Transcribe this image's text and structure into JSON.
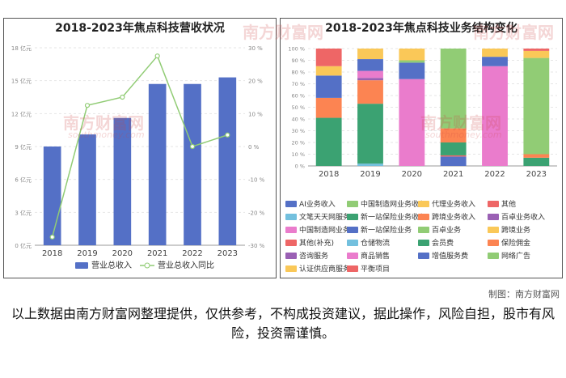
{
  "credit": "制图：南方财富网",
  "disclaimer": "以上数据由南方财富网整理提供，仅供参考，不构成投资建议，据此操作，风险自担，股市有风险，投资需谨慎。",
  "watermark": {
    "cn": "南方财富网",
    "en": "southmoney.com"
  },
  "colors": {
    "revenue_bar": "#5470c6",
    "yoy_line": "#91cc75",
    "panel_border": "#555555"
  },
  "chart_data": [
    {
      "type": "bar",
      "title": "2018-2023年焦点科技营收状况",
      "categories": [
        "2018",
        "2019",
        "2020",
        "2021",
        "2022",
        "2023"
      ],
      "y_ticks": [
        "0 亿元",
        "3 亿元",
        "6 亿元",
        "9 亿元",
        "12 亿元",
        "15 亿元",
        "18 亿元"
      ],
      "y2_ticks": [
        "-30 %",
        "-20 %",
        "-10 %",
        "0 %",
        "10 %",
        "20 %",
        "30 %"
      ],
      "ylim": [
        0,
        18
      ],
      "y2lim": [
        -30,
        30
      ],
      "series": [
        {
          "name": "营业总收入",
          "type": "bar",
          "axis": "left",
          "values": [
            9.0,
            10.1,
            11.6,
            14.7,
            14.7,
            15.3
          ]
        },
        {
          "name": "营业总收入同比",
          "type": "line",
          "axis": "right",
          "values": [
            -27.5,
            12.5,
            15.0,
            27.5,
            0.0,
            3.5
          ]
        }
      ],
      "legend_position": "bottom"
    },
    {
      "type": "bar",
      "stacked": true,
      "title": "2018-2023年焦点科技业务结构变化",
      "categories": [
        "2018",
        "2019",
        "2020",
        "2021",
        "2022",
        "2023"
      ],
      "y_ticks": [
        "0 %",
        "10 %",
        "20 %",
        "30 %",
        "40 %",
        "50 %",
        "60 %",
        "70 %",
        "80 %",
        "90 %",
        "100 %"
      ],
      "ylim": [
        0,
        100
      ],
      "series": [
        {
          "name": "AI业务收入",
          "color": "#5470c6",
          "values": [
            0,
            0,
            0,
            0,
            0,
            0
          ]
        },
        {
          "name": "中国制造网业务收入",
          "color": "#91cc75",
          "values": [
            0,
            0,
            0,
            0,
            0,
            0
          ]
        },
        {
          "name": "代理业务收入",
          "color": "#fac858",
          "values": [
            0,
            0,
            0,
            0,
            0,
            0
          ]
        },
        {
          "name": "其他",
          "color": "#ee6666",
          "values": [
            0,
            0,
            0,
            0,
            0,
            0
          ]
        },
        {
          "name": "文笔天天网服务",
          "color": "#73c0de",
          "values": [
            0,
            2,
            0,
            0,
            0,
            0
          ]
        },
        {
          "name": "新一站保险业务收入",
          "color": "#3ba272",
          "values": [
            41,
            51,
            0,
            0,
            0,
            0
          ]
        },
        {
          "name": "跨境业务收入",
          "color": "#fc8452",
          "values": [
            17,
            20,
            0,
            0,
            0,
            0
          ]
        },
        {
          "name": "百卓业务收入",
          "color": "#9a60b4",
          "values": [
            0,
            2,
            0,
            0,
            0,
            0
          ]
        },
        {
          "name": "中国制造网业务",
          "color": "#ea7ccc",
          "values": [
            0,
            6,
            74,
            0,
            0,
            0
          ]
        },
        {
          "name": "新一站保险业务",
          "color": "#5470c6",
          "values": [
            19,
            10,
            14,
            8,
            0,
            0
          ]
        },
        {
          "name": "百卓业务",
          "color": "#91cc75",
          "values": [
            0,
            0,
            2,
            0,
            0,
            0
          ]
        },
        {
          "name": "跨境业务",
          "color": "#fac858",
          "values": [
            8,
            0,
            10,
            0,
            0,
            0
          ]
        },
        {
          "name": "其他(补充)",
          "color": "#ee6666",
          "values": [
            15,
            0,
            0,
            1,
            0,
            0
          ]
        },
        {
          "name": "仓储物流",
          "color": "#73c0de",
          "values": [
            0,
            0,
            0,
            0,
            0,
            0
          ]
        },
        {
          "name": "会员费",
          "color": "#3ba272",
          "values": [
            0,
            0,
            0,
            11,
            0,
            7
          ]
        },
        {
          "name": "保险佣金",
          "color": "#fc8452",
          "values": [
            0,
            0,
            0,
            12,
            0,
            3
          ]
        },
        {
          "name": "咨询服务",
          "color": "#9a60b4",
          "values": [
            0,
            0,
            0,
            0,
            0,
            0
          ]
        },
        {
          "name": "商品销售",
          "color": "#ea7ccc",
          "values": [
            0,
            0,
            0,
            0,
            85,
            0
          ]
        },
        {
          "name": "增值服务费",
          "color": "#5470c6",
          "values": [
            0,
            0,
            0,
            0,
            8,
            0
          ]
        },
        {
          "name": "网络广告",
          "color": "#91cc75",
          "values": [
            0,
            0,
            0,
            68,
            0,
            82
          ]
        },
        {
          "name": "认证供应商服务",
          "color": "#fac858",
          "values": [
            0,
            9,
            0,
            0,
            7,
            6
          ]
        },
        {
          "name": "平衡项目",
          "color": "#ee6666",
          "values": [
            0,
            0,
            0,
            0,
            0,
            2
          ]
        }
      ],
      "legend_position": "bottom"
    }
  ]
}
